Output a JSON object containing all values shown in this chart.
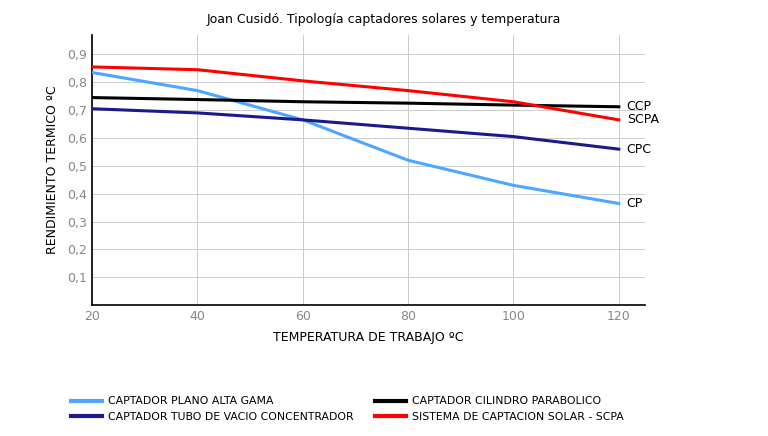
{
  "title": "Joan Cusidó. Tipología captadores solares y temperatura",
  "xlabel": "TEMPERATURA DE TRABAJO ºC",
  "ylabel": "RENDIMIENTO TERMICO ºC",
  "x": [
    20,
    40,
    60,
    80,
    100,
    120
  ],
  "cp": [
    0.835,
    0.77,
    0.665,
    0.52,
    0.43,
    0.365
  ],
  "cpc": [
    0.705,
    0.69,
    0.665,
    0.635,
    0.605,
    0.56
  ],
  "ccp": [
    0.745,
    0.738,
    0.73,
    0.725,
    0.718,
    0.712
  ],
  "scpa": [
    0.855,
    0.845,
    0.805,
    0.77,
    0.73,
    0.665
  ],
  "cp_color": "#4da6ff",
  "cpc_color": "#1a1a8c",
  "ccp_color": "#000000",
  "scpa_color": "#FF0000",
  "cp_label": "CP",
  "cpc_label": "CPC",
  "ccp_label": "CCP",
  "scpa_label": "SCPA",
  "legend_cp": "CAPTADOR PLANO ALTA GAMA",
  "legend_cpc": "CAPTADOR TUBO DE VACIO CONCENTRADOR",
  "legend_ccp": "CAPTADOR CILINDRO PARABOLICO",
  "legend_scpa": "SISTEMA DE CAPTACION SOLAR - SCPA",
  "xlim": [
    20,
    125
  ],
  "ylim": [
    0,
    0.97
  ],
  "yticks": [
    0.1,
    0.2,
    0.3,
    0.4,
    0.5,
    0.6,
    0.7,
    0.8,
    0.9
  ],
  "xticks": [
    20,
    40,
    60,
    80,
    100,
    120
  ],
  "background_color": "#FFFFFF",
  "grid_color": "#CCCCCC",
  "line_width": 2.2
}
